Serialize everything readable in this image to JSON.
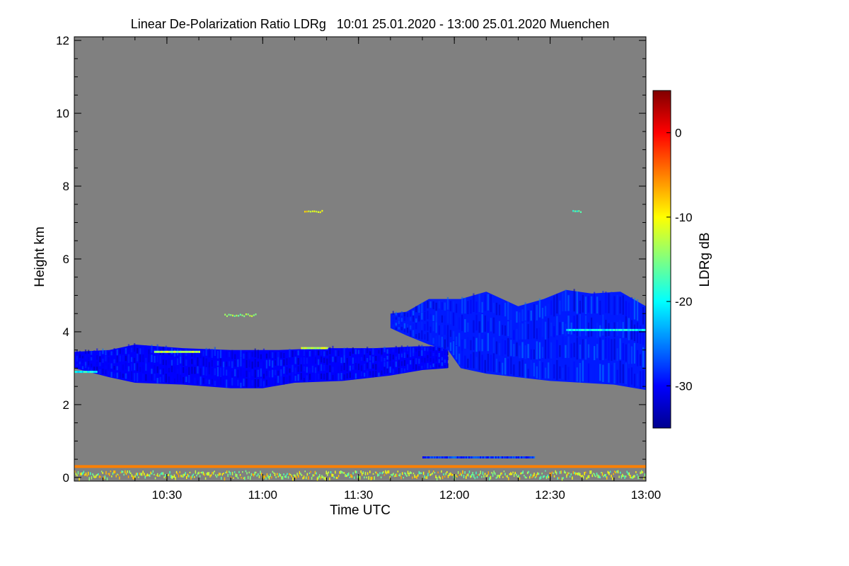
{
  "chart_data": {
    "type": "heatmap",
    "title": "Linear De-Polarization Ratio LDRg   10:01 25.01.2020 - 13:00 25.01.2020 Muenchen",
    "xlabel": "Time UTC",
    "ylabel": "Height km",
    "colorbar_label": "LDRg dB",
    "x_range_minutes": [
      601,
      780
    ],
    "x_ticks": [
      {
        "minute": 630,
        "label": "10:30"
      },
      {
        "minute": 660,
        "label": "11:00"
      },
      {
        "minute": 690,
        "label": "11:30"
      },
      {
        "minute": 720,
        "label": "12:00"
      },
      {
        "minute": 750,
        "label": "12:30"
      },
      {
        "minute": 780,
        "label": "13:00"
      }
    ],
    "y_range_km": [
      -0.1,
      12.1
    ],
    "y_ticks": [
      {
        "value": 0,
        "label": "0"
      },
      {
        "value": 2,
        "label": "2"
      },
      {
        "value": 4,
        "label": "4"
      },
      {
        "value": 6,
        "label": "6"
      },
      {
        "value": 8,
        "label": "8"
      },
      {
        "value": 10,
        "label": "10"
      },
      {
        "value": 12,
        "label": "12"
      }
    ],
    "colorbar_range_db": [
      -35,
      5
    ],
    "colorbar_ticks": [
      {
        "value": 0,
        "label": "0"
      },
      {
        "value": -10,
        "label": "-10"
      },
      {
        "value": -20,
        "label": "-20"
      },
      {
        "value": -30,
        "label": "-30"
      }
    ],
    "colormap": [
      "#00008f",
      "#0000ff",
      "#0080ff",
      "#00ffff",
      "#80ff80",
      "#ffff00",
      "#ff8000",
      "#ff0000",
      "#800000"
    ],
    "background_color": "#808080",
    "cloud_layers": [
      {
        "name": "lower cloud layer",
        "ldr_db": -30,
        "top_km": [
          [
            601,
            3.45
          ],
          [
            612,
            3.5
          ],
          [
            620,
            3.65
          ],
          [
            635,
            3.55
          ],
          [
            650,
            3.5
          ],
          [
            665,
            3.5
          ],
          [
            680,
            3.55
          ],
          [
            695,
            3.55
          ],
          [
            708,
            3.6
          ],
          [
            718,
            3.6
          ]
        ],
        "bottom_km": [
          [
            601,
            3.0
          ],
          [
            612,
            2.75
          ],
          [
            620,
            2.6
          ],
          [
            635,
            2.55
          ],
          [
            650,
            2.45
          ],
          [
            660,
            2.45
          ],
          [
            670,
            2.6
          ],
          [
            685,
            2.65
          ],
          [
            700,
            2.8
          ],
          [
            710,
            2.95
          ],
          [
            718,
            3.0
          ]
        ]
      },
      {
        "name": "upper cloud layer",
        "ldr_db": -29,
        "top_km": [
          [
            700,
            4.5
          ],
          [
            705,
            4.55
          ],
          [
            712,
            4.9
          ],
          [
            722,
            4.9
          ],
          [
            730,
            5.1
          ],
          [
            740,
            4.7
          ],
          [
            748,
            4.9
          ],
          [
            755,
            5.15
          ],
          [
            763,
            5.05
          ],
          [
            772,
            5.1
          ],
          [
            780,
            4.7
          ]
        ],
        "bottom_km": [
          [
            700,
            4.1
          ],
          [
            705,
            3.9
          ],
          [
            712,
            3.65
          ],
          [
            718,
            3.5
          ],
          [
            722,
            3.0
          ],
          [
            730,
            2.85
          ],
          [
            740,
            2.75
          ],
          [
            750,
            2.65
          ],
          [
            760,
            2.6
          ],
          [
            770,
            2.55
          ],
          [
            780,
            2.4
          ]
        ]
      }
    ],
    "features": [
      {
        "name": "near-surface layer",
        "height_km": 0.3,
        "ldr_db": -5
      },
      {
        "name": "surface noise",
        "height_km_range": [
          0.0,
          0.2
        ],
        "ldr_db": -12
      },
      {
        "name": "weak layer",
        "height_km": 0.55,
        "minute_range": [
          710,
          745
        ],
        "ldr_db": -28
      },
      {
        "name": "horizontal streak",
        "height_km": 2.9,
        "minute_range": [
          601,
          608
        ],
        "ldr_db": -20
      },
      {
        "name": "horizontal streak",
        "height_km": 3.45,
        "minute_range": [
          626,
          640
        ],
        "ldr_db": -13
      },
      {
        "name": "horizontal streak",
        "height_km": 3.55,
        "minute_range": [
          672,
          680
        ],
        "ldr_db": -12
      },
      {
        "name": "horizontal streak",
        "height_km": 4.05,
        "minute_range": [
          755,
          780
        ],
        "ldr_db": -20
      },
      {
        "name": "elevated specks",
        "height_km": 7.3,
        "minute_range": [
          673,
          679
        ],
        "ldr_db": -10
      },
      {
        "name": "elevated specks",
        "height_km": 7.3,
        "minute_range": [
          757,
          760
        ],
        "ldr_db": -17
      },
      {
        "name": "elevated specks",
        "height_km": 4.45,
        "minute_range": [
          648,
          658
        ],
        "ldr_db": -14
      }
    ]
  }
}
